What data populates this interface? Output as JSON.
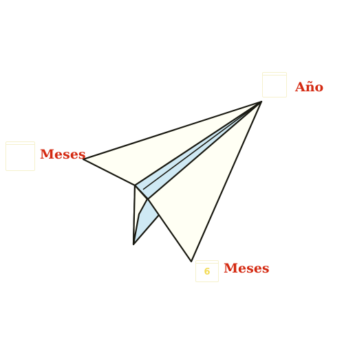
{
  "labels": {
    "year": "Año",
    "months_left": "Meses",
    "months_bottom": "Meses"
  },
  "icons": {
    "calendar_year": "calendar-icon",
    "calendar_left": "calendar-icon",
    "calendar_bottom_number": "6"
  },
  "colors": {
    "label_text": "#d42a12",
    "plane_outline": "#1a1a12",
    "plane_fill": "#fffff4",
    "plane_shade": "#cfe9f4",
    "calendar_outline": "#f4efc4",
    "calendar_number": "#f2d63a"
  }
}
